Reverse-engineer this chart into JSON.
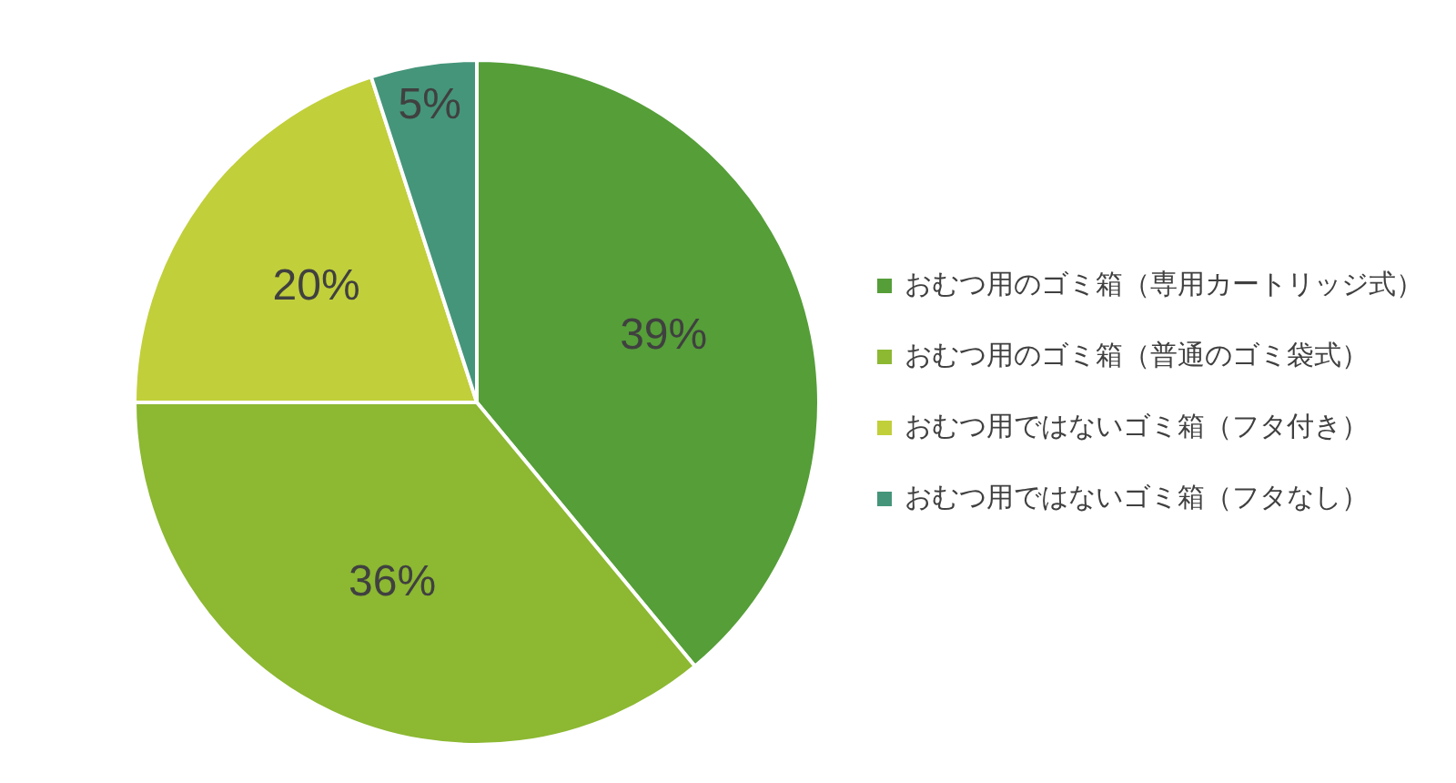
{
  "chart_data": {
    "type": "pie",
    "categories": [
      "おむつ用のゴミ箱（専用カートリッジ式）",
      "おむつ用のゴミ箱（普通のゴミ袋式）",
      "おむつ用ではないゴミ箱（フタ付き）",
      "おむつ用ではないゴミ箱（フタなし）"
    ],
    "values": [
      39,
      36,
      20,
      5
    ],
    "colors": [
      "#559e38",
      "#8cb832",
      "#c1cf3a",
      "#45957a"
    ],
    "value_labels": [
      "39%",
      "36%",
      "20%",
      "5%"
    ],
    "legend": "right"
  }
}
